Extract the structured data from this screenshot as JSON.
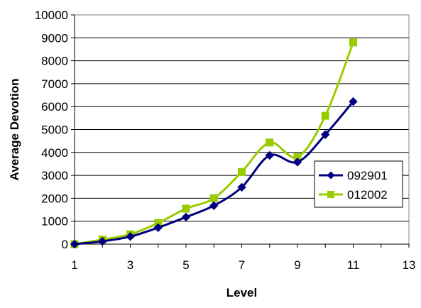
{
  "chart_data": {
    "type": "line",
    "title": "",
    "xlabel": "Level",
    "ylabel": "Average Devotion",
    "xlim": [
      1,
      13
    ],
    "ylim": [
      0,
      10000
    ],
    "xticks": [
      "1",
      "3",
      "5",
      "7",
      "9",
      "11",
      "13"
    ],
    "yticks": [
      "0",
      "1000",
      "2000",
      "3000",
      "4000",
      "5000",
      "6000",
      "7000",
      "8000",
      "9000",
      "10000"
    ],
    "grid": "horizontal",
    "legend_position": "right",
    "series": [
      {
        "name": "092901",
        "color": "#00007f",
        "marker": "diamond",
        "x": [
          1,
          2,
          3,
          4,
          5,
          6,
          7,
          8,
          9,
          10,
          11
        ],
        "y": [
          0,
          120,
          330,
          720,
          1180,
          1680,
          2480,
          3870,
          3580,
          4780,
          6220
        ]
      },
      {
        "name": "012002",
        "color": "#99cc00",
        "marker": "square",
        "x": [
          1,
          2,
          3,
          4,
          5,
          6,
          7,
          8,
          9,
          10,
          11
        ],
        "y": [
          0,
          200,
          430,
          920,
          1550,
          2000,
          3150,
          4430,
          3800,
          5600,
          8800
        ]
      }
    ]
  }
}
